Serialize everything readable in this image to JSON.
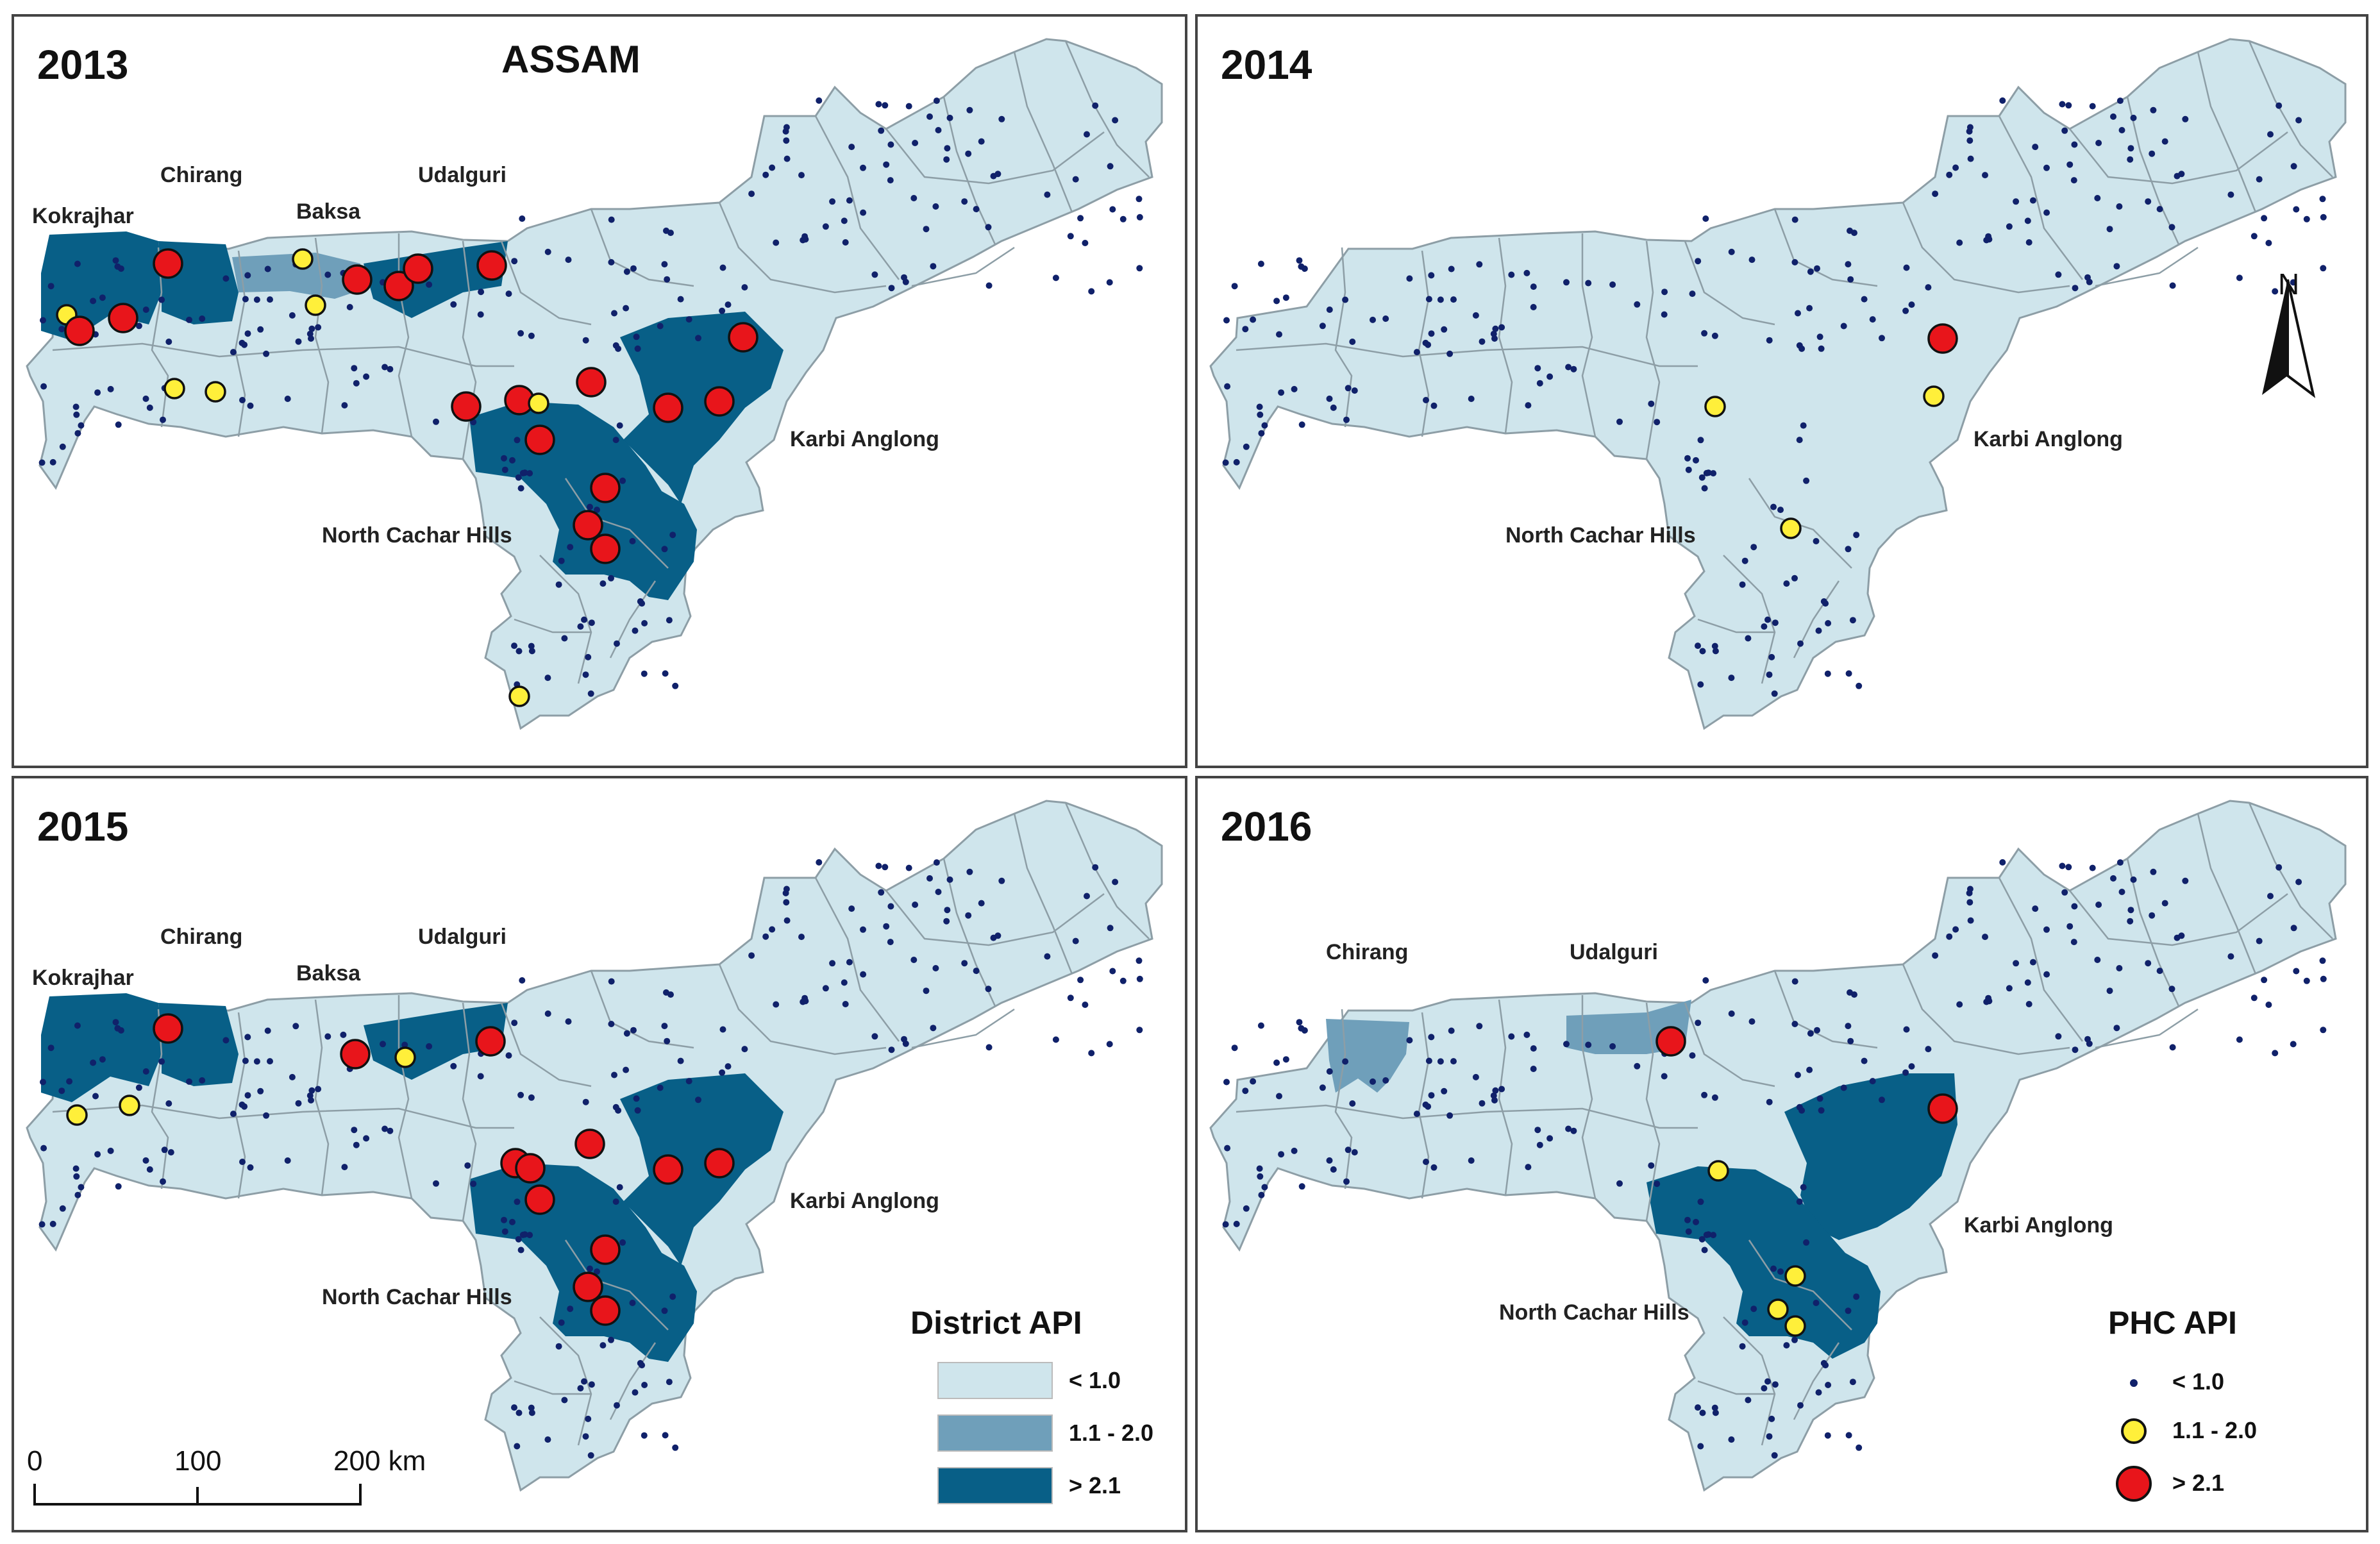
{
  "main_title": "ASSAM",
  "panels": [
    {
      "year": "2013"
    },
    {
      "year": "2014"
    },
    {
      "year": "2015"
    },
    {
      "year": "2016"
    }
  ],
  "district_labels": {
    "kokrajhar": "Kokrajhar",
    "chirang": "Chirang",
    "baksa": "Baksa",
    "udalguri": "Udalguri",
    "karbi_anglong": "Karbi Anglong",
    "north_cachar_hills": "North Cachar Hills"
  },
  "north_arrow": {
    "label": "N"
  },
  "district_legend": {
    "title": "District API",
    "items": [
      {
        "label": "< 1.0",
        "color": "#cfe5ec"
      },
      {
        "label": "1.1 - 2.0",
        "color": "#6f9fba"
      },
      {
        "label": "> 2.1",
        "color": "#085f87"
      }
    ]
  },
  "phc_legend": {
    "title": "PHC API",
    "items": [
      {
        "label": "< 1.0",
        "color": "#10216a"
      },
      {
        "label": "1.1 - 2.0",
        "color": "#ffef3a"
      },
      {
        "label": "> 2.1",
        "color": "#e8151b"
      }
    ]
  },
  "scale_bar": {
    "ticks": [
      "0",
      "100",
      "200 km"
    ]
  }
}
